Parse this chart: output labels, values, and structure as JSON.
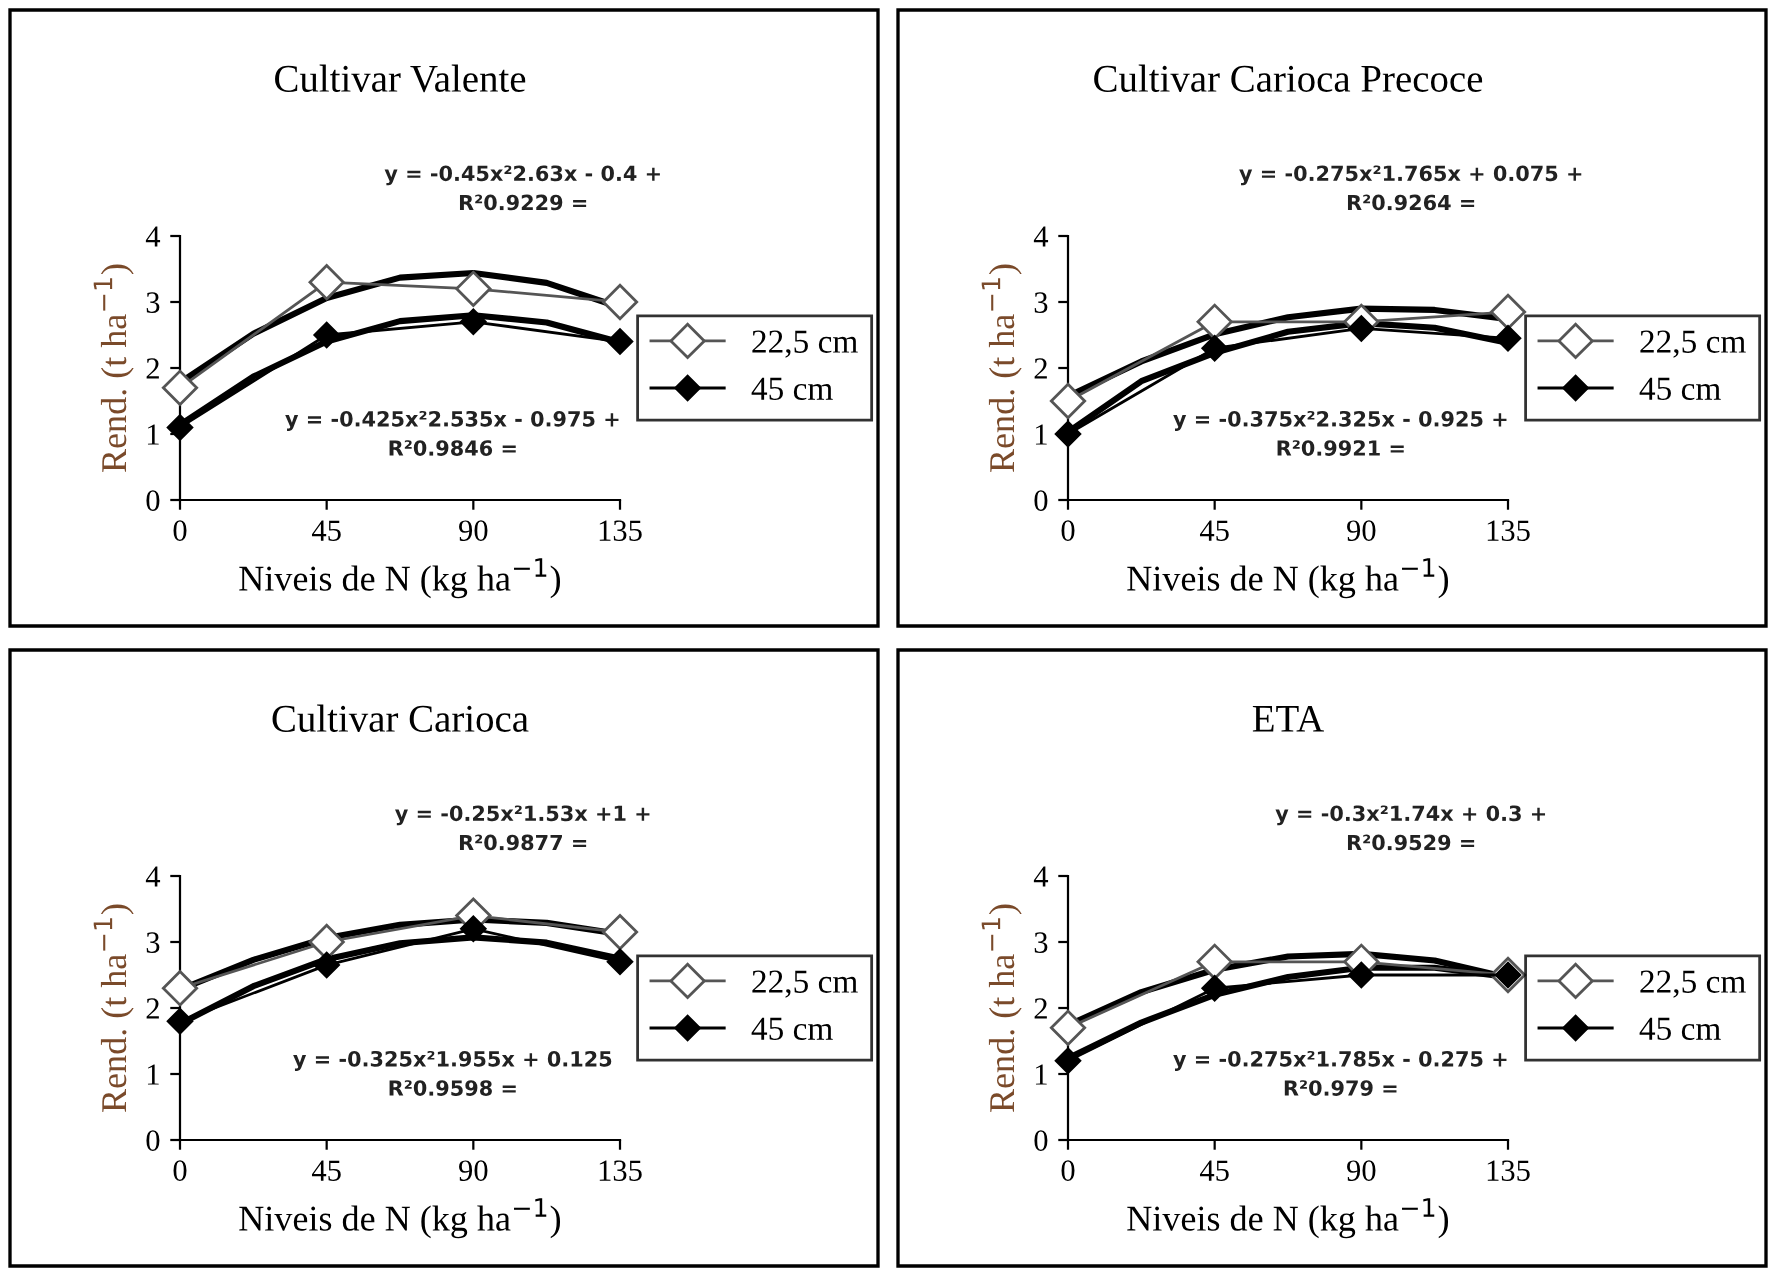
{
  "chart_data": [
    {
      "type": "line",
      "title": "Cultivar Valente",
      "xlabel": "Niveis de N (kg ha$^{−1}$)",
      "ylabel": "Rend. (t ha$^{−1}$)",
      "x": [
        0,
        45,
        90,
        135
      ],
      "xlim": [
        0,
        135
      ],
      "xticks": [
        0,
        45,
        90,
        135
      ],
      "ylim": [
        0,
        4
      ],
      "yticks": [
        0,
        1,
        2,
        3,
        4
      ],
      "marker": "diamond",
      "legend": "right",
      "grid": false,
      "series": [
        {
          "name": "22,5 cm",
          "color": "#555555",
          "values": [
            1.7,
            3.3,
            3.2,
            3.0
          ]
        },
        {
          "name": "45 cm",
          "color": "#000000",
          "values": [
            1.1,
            2.5,
            2.7,
            2.4
          ]
        },
        {
          "type": "line",
          "color": "#000000",
          "marker": "none",
          "x": [
            0,
            22.5,
            45,
            67.5,
            90,
            112.5,
            135
          ],
          "values": [
            1.78,
            2.52,
            3.06,
            3.37,
            3.44,
            3.29,
            2.92
          ]
        },
        {
          "type": "line",
          "color": "#000000",
          "marker": "none",
          "x": [
            0,
            22.5,
            45,
            67.5,
            90,
            112.5,
            135
          ],
          "values": [
            1.14,
            1.87,
            2.4,
            2.71,
            2.8,
            2.69,
            2.39
          ]
        }
      ],
      "annotations": [
        "y = -0.45x²2.63x - 0.4 +",
        "R²0.9229 =",
        "y = -0.425x²2.535x - 0.975 +",
        "R²0.9846 ="
      ]
    },
    {
      "type": "line",
      "title": "Cultivar Carioca Precoce",
      "xlabel": "Niveis de N (kg ha$^{−1}$)",
      "ylabel": "Rend. (t ha$^{−1}$)",
      "x": [
        0,
        45,
        90,
        135
      ],
      "xlim": [
        0,
        135
      ],
      "xticks": [
        0,
        45,
        90,
        135
      ],
      "ylim": [
        0,
        4
      ],
      "yticks": [
        0,
        1,
        2,
        3,
        4
      ],
      "marker": "diamond",
      "legend": "right",
      "grid": false,
      "series": [
        {
          "name": "22,5 cm",
          "color": "#555555",
          "values": [
            1.5,
            2.7,
            2.7,
            2.85
          ]
        },
        {
          "name": "45 cm",
          "color": "#000000",
          "values": [
            1.0,
            2.3,
            2.6,
            2.45
          ]
        },
        {
          "type": "line",
          "color": "#000000",
          "marker": "none",
          "x": [
            0,
            22.5,
            45,
            67.5,
            90,
            112.5,
            135
          ],
          "values": [
            1.57,
            2.1,
            2.51,
            2.77,
            2.9,
            2.88,
            2.74
          ]
        },
        {
          "type": "line",
          "color": "#000000",
          "marker": "none",
          "x": [
            0,
            22.5,
            45,
            67.5,
            90,
            112.5,
            135
          ],
          "values": [
            1.03,
            1.8,
            2.23,
            2.55,
            2.68,
            2.61,
            2.38
          ]
        }
      ],
      "annotations": [
        "y = -0.275x²1.765x + 0.075 +",
        "R²0.9264 =",
        "y = -0.375x²2.325x - 0.925 +",
        "R²0.9921 ="
      ]
    },
    {
      "type": "line",
      "title": "Cultivar Carioca",
      "xlabel": "Niveis de N (kg ha$^{−1}$)",
      "ylabel": "Rend. (t ha$^{−1}$)",
      "x": [
        0,
        45,
        90,
        135
      ],
      "xlim": [
        0,
        135
      ],
      "xticks": [
        0,
        45,
        90,
        135
      ],
      "ylim": [
        0,
        4
      ],
      "yticks": [
        0,
        1,
        2,
        3,
        4
      ],
      "marker": "diamond",
      "legend": "right",
      "grid": false,
      "series": [
        {
          "name": "22,5 cm",
          "color": "#555555",
          "values": [
            2.3,
            3.0,
            3.4,
            3.15
          ]
        },
        {
          "name": "45 cm",
          "color": "#000000",
          "values": [
            1.8,
            2.65,
            3.2,
            2.7
          ]
        },
        {
          "type": "line",
          "color": "#000000",
          "marker": "none",
          "x": [
            0,
            22.5,
            45,
            67.5,
            90,
            112.5,
            135
          ],
          "values": [
            2.28,
            2.73,
            3.06,
            3.26,
            3.34,
            3.29,
            3.12
          ]
        },
        {
          "type": "line",
          "color": "#000000",
          "marker": "none",
          "x": [
            0,
            22.5,
            45,
            67.5,
            90,
            112.5,
            135
          ],
          "values": [
            1.76,
            2.33,
            2.74,
            2.98,
            3.07,
            2.99,
            2.75
          ]
        }
      ],
      "annotations": [
        "y = -0.25x²1.53x +1 +",
        "R²0.9877 =",
        "y = -0.325x²1.955x + 0.125",
        "R²0.9598 ="
      ]
    },
    {
      "type": "line",
      "title": "ETA",
      "xlabel": "Niveis de N (kg ha$^{−1}$)",
      "ylabel": "Rend. (t ha$^{−1}$)",
      "x": [
        0,
        45,
        90,
        135
      ],
      "xlim": [
        0,
        135
      ],
      "xticks": [
        0,
        45,
        90,
        135
      ],
      "ylim": [
        0,
        4
      ],
      "yticks": [
        0,
        1,
        2,
        3,
        4
      ],
      "marker": "diamond",
      "legend": "right",
      "grid": false,
      "series": [
        {
          "name": "22,5 cm",
          "color": "#555555",
          "values": [
            1.7,
            2.7,
            2.7,
            2.5
          ]
        },
        {
          "name": "45 cm",
          "color": "#000000",
          "values": [
            1.2,
            2.3,
            2.5,
            2.5
          ]
        },
        {
          "type": "line",
          "color": "#000000",
          "marker": "none",
          "x": [
            0,
            22.5,
            45,
            67.5,
            90,
            112.5,
            135
          ],
          "values": [
            1.74,
            2.24,
            2.58,
            2.78,
            2.82,
            2.72,
            2.46
          ]
        },
        {
          "type": "line",
          "color": "#000000",
          "marker": "none",
          "x": [
            0,
            22.5,
            45,
            67.5,
            90,
            112.5,
            135
          ],
          "values": [
            1.24,
            1.78,
            2.2,
            2.47,
            2.61,
            2.61,
            2.47
          ]
        }
      ],
      "annotations": [
        "y = -0.3x²1.74x + 0.3 +",
        "R²0.9529 =",
        "y = -0.275x²1.785x - 0.275 +",
        "R²0.979 ="
      ]
    }
  ]
}
